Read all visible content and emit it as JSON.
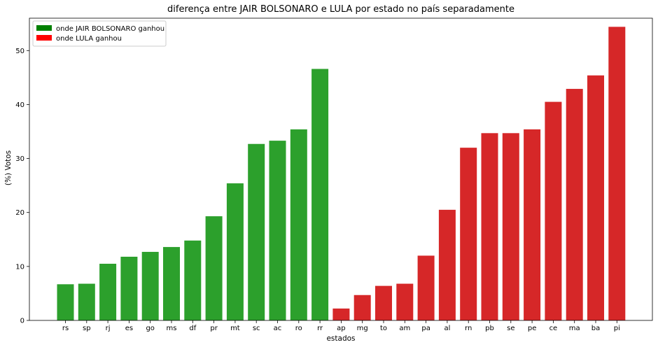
{
  "chart_data": {
    "type": "bar",
    "title": "diferença entre JAIR BOLSONARO e LULA por estado no país separadamente",
    "xlabel": "estados",
    "ylabel": "(%) Votos",
    "ylim": [
      0,
      56
    ],
    "yticks": [
      0,
      10,
      20,
      30,
      40,
      50
    ],
    "grid": false,
    "legend_position": "top-left",
    "categories": [
      "rs",
      "sp",
      "rj",
      "es",
      "go",
      "ms",
      "df",
      "pr",
      "mt",
      "sc",
      "ac",
      "ro",
      "rr",
      "ap",
      "mg",
      "to",
      "am",
      "pa",
      "al",
      "rn",
      "pb",
      "se",
      "pe",
      "ce",
      "ma",
      "ba",
      "pi"
    ],
    "values": [
      6.7,
      6.8,
      10.5,
      11.8,
      12.7,
      13.6,
      14.8,
      19.3,
      25.4,
      32.7,
      33.3,
      35.4,
      46.6,
      2.2,
      4.7,
      6.4,
      6.8,
      12.0,
      20.5,
      32.0,
      34.7,
      34.7,
      35.4,
      40.5,
      42.9,
      45.4,
      54.4
    ],
    "winner": [
      "bolsonaro",
      "bolsonaro",
      "bolsonaro",
      "bolsonaro",
      "bolsonaro",
      "bolsonaro",
      "bolsonaro",
      "bolsonaro",
      "bolsonaro",
      "bolsonaro",
      "bolsonaro",
      "bolsonaro",
      "bolsonaro",
      "lula",
      "lula",
      "lula",
      "lula",
      "lula",
      "lula",
      "lula",
      "lula",
      "lula",
      "lula",
      "lula",
      "lula",
      "lula",
      "lula"
    ],
    "bar_colors": {
      "bolsonaro": "#2ca02c",
      "lula": "#d62728"
    },
    "legend": [
      {
        "key": "bolsonaro",
        "label": "onde JAIR BOLSONARO ganhou",
        "color": "#008000"
      },
      {
        "key": "lula",
        "label": "onde LULA ganhou",
        "color": "#ff0000"
      }
    ]
  }
}
